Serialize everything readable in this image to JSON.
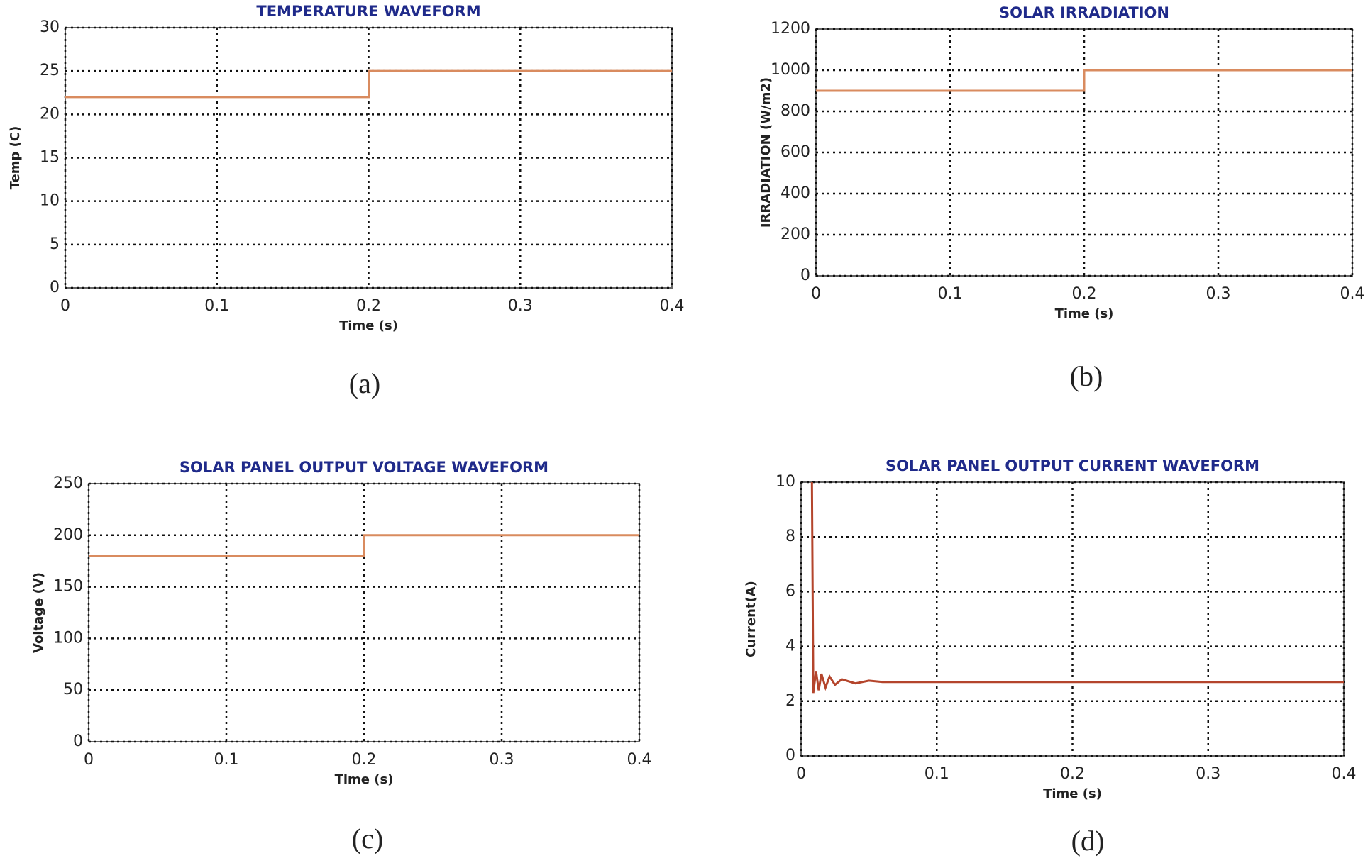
{
  "chart_data": [
    {
      "type": "line",
      "title": "TEMPERATURE WAVEFORM",
      "xlabel": "Time (s)",
      "ylabel": "Temp (C)",
      "caption": "(a)",
      "x": [
        0,
        0.2,
        0.2,
        0.4
      ],
      "values": [
        22,
        22,
        25,
        25
      ],
      "color": "#d98b5f",
      "xlim": [
        0,
        0.4
      ],
      "ylim": [
        0,
        30
      ],
      "xticks": [
        0,
        0.1,
        0.2,
        0.3,
        0.4
      ],
      "yticks": [
        0,
        5,
        10,
        15,
        20,
        25,
        30
      ],
      "grid": true
    },
    {
      "type": "line",
      "title": "SOLAR IRRADIATION",
      "xlabel": "Time (s)",
      "ylabel": "IRRADIATION (W/m2)",
      "caption": "(b)",
      "x": [
        0,
        0.2,
        0.2,
        0.4
      ],
      "values": [
        900,
        900,
        1000,
        1000
      ],
      "color": "#d98b5f",
      "xlim": [
        0,
        0.4
      ],
      "ylim": [
        0,
        1200
      ],
      "xticks": [
        0,
        0.1,
        0.2,
        0.3,
        0.4
      ],
      "yticks": [
        0,
        200,
        400,
        600,
        800,
        1000,
        1200
      ],
      "grid": true
    },
    {
      "type": "line",
      "title": "SOLAR PANEL OUTPUT VOLTAGE WAVEFORM",
      "xlabel": "Time (s)",
      "ylabel": "Voltage (V)",
      "caption": "(c)",
      "x": [
        0,
        0.2,
        0.2,
        0.4
      ],
      "values": [
        180,
        180,
        200,
        200
      ],
      "color": "#d98b5f",
      "xlim": [
        0,
        0.4
      ],
      "ylim": [
        0,
        250
      ],
      "xticks": [
        0,
        0.1,
        0.2,
        0.3,
        0.4
      ],
      "yticks": [
        0,
        50,
        100,
        150,
        200,
        250
      ],
      "grid": true
    },
    {
      "type": "line",
      "title": "SOLAR PANEL OUTPUT CURRENT WAVEFORM",
      "xlabel": "Time (s)",
      "ylabel": "Current(A)",
      "caption": "(d)",
      "x": [
        0.008,
        0.009,
        0.011,
        0.013,
        0.015,
        0.018,
        0.021,
        0.025,
        0.03,
        0.04,
        0.05,
        0.06,
        0.1,
        0.2,
        0.3,
        0.4
      ],
      "values": [
        10,
        2.3,
        3.1,
        2.4,
        3.0,
        2.5,
        2.9,
        2.6,
        2.8,
        2.65,
        2.75,
        2.7,
        2.7,
        2.7,
        2.7,
        2.7
      ],
      "color": "#b4452c",
      "xlim": [
        0,
        0.4
      ],
      "ylim": [
        0,
        10
      ],
      "xticks": [
        0,
        0.1,
        0.2,
        0.3,
        0.4
      ],
      "yticks": [
        0,
        2,
        4,
        6,
        8,
        10
      ],
      "grid": true
    }
  ]
}
